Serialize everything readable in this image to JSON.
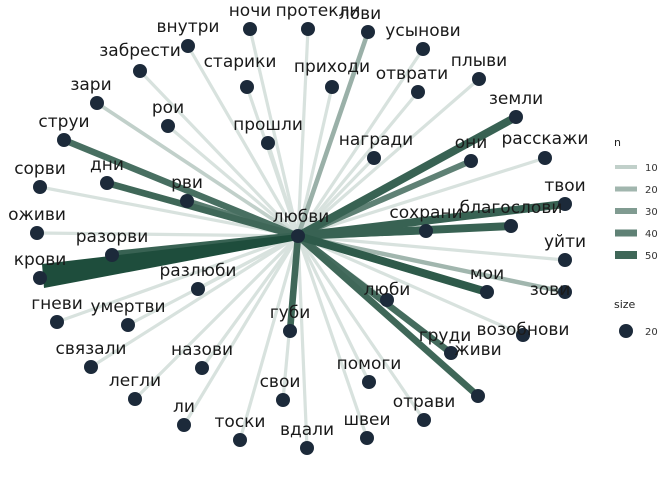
{
  "graph": {
    "center": "любви",
    "colors": {
      "node": "#1c2a3a",
      "edge_max": "#1e4d3c",
      "edge_min": "#d8e2de"
    },
    "nodes": [
      {
        "id": "ночи",
        "label": "ночи"
      },
      {
        "id": "протекли",
        "label": "протекли"
      },
      {
        "id": "лови",
        "label": "лови"
      },
      {
        "id": "внутри",
        "label": "внутри"
      },
      {
        "id": "усынови",
        "label": "усынови"
      },
      {
        "id": "забрести",
        "label": "забрести"
      },
      {
        "id": "старики",
        "label": "старики"
      },
      {
        "id": "приходи",
        "label": "приходи"
      },
      {
        "id": "плыви",
        "label": "плыви"
      },
      {
        "id": "отврати",
        "label": "отврати"
      },
      {
        "id": "зари",
        "label": "зари"
      },
      {
        "id": "земли",
        "label": "земли"
      },
      {
        "id": "рои",
        "label": "рои"
      },
      {
        "id": "струи",
        "label": "струи"
      },
      {
        "id": "прошли",
        "label": "прошли"
      },
      {
        "id": "награди",
        "label": "награди"
      },
      {
        "id": "они",
        "label": "они"
      },
      {
        "id": "расскажи",
        "label": "расскажи"
      },
      {
        "id": "сорви",
        "label": "сорви"
      },
      {
        "id": "дни",
        "label": "дни"
      },
      {
        "id": "рви",
        "label": "рви"
      },
      {
        "id": "твои",
        "label": "твои"
      },
      {
        "id": "благослови",
        "label": "благослови"
      },
      {
        "id": "оживи",
        "label": "оживи"
      },
      {
        "id": "сохрани",
        "label": "сохрани"
      },
      {
        "id": "разорви",
        "label": "разорви"
      },
      {
        "id": "уйти",
        "label": "уйти"
      },
      {
        "id": "крови",
        "label": "крови"
      },
      {
        "id": "разлюби",
        "label": "разлюби"
      },
      {
        "id": "мои",
        "label": "мои"
      },
      {
        "id": "гневи",
        "label": "гневи"
      },
      {
        "id": "люби",
        "label": "люби"
      },
      {
        "id": "зови",
        "label": "зови"
      },
      {
        "id": "умертви",
        "label": "умертви"
      },
      {
        "id": "губи",
        "label": "губи"
      },
      {
        "id": "груди",
        "label": "груди"
      },
      {
        "id": "возобнови",
        "label": "возобнови"
      },
      {
        "id": "связали",
        "label": "связали"
      },
      {
        "id": "назови",
        "label": "назови"
      },
      {
        "id": "легли",
        "label": "легли"
      },
      {
        "id": "свои",
        "label": "свои"
      },
      {
        "id": "помоги",
        "label": "помоги"
      },
      {
        "id": "живи",
        "label": "живи"
      },
      {
        "id": "ли",
        "label": "ли"
      },
      {
        "id": "тоски",
        "label": "тоски"
      },
      {
        "id": "вдали",
        "label": "вдали"
      },
      {
        "id": "швеи",
        "label": "швеи"
      },
      {
        "id": "отрави",
        "label": "отрави"
      }
    ],
    "edges": [
      {
        "target": "ночи",
        "n": 3
      },
      {
        "target": "протекли",
        "n": 3
      },
      {
        "target": "лови",
        "n": 22
      },
      {
        "target": "внутри",
        "n": 3
      },
      {
        "target": "усынови",
        "n": 3
      },
      {
        "target": "забрести",
        "n": 3
      },
      {
        "target": "старики",
        "n": 3
      },
      {
        "target": "приходи",
        "n": 3
      },
      {
        "target": "плыви",
        "n": 3
      },
      {
        "target": "отврати",
        "n": 3
      },
      {
        "target": "зари",
        "n": 10
      },
      {
        "target": "земли",
        "n": 52
      },
      {
        "target": "рои",
        "n": 3
      },
      {
        "target": "струи",
        "n": 47
      },
      {
        "target": "прошли",
        "n": 3
      },
      {
        "target": "награди",
        "n": 3
      },
      {
        "target": "они",
        "n": 40
      },
      {
        "target": "расскажи",
        "n": 3
      },
      {
        "target": "сорви",
        "n": 3
      },
      {
        "target": "дни",
        "n": 50
      },
      {
        "target": "рви",
        "n": 42
      },
      {
        "target": "твои",
        "n": 52
      },
      {
        "target": "благослови",
        "n": 52
      },
      {
        "target": "оживи",
        "n": 3
      },
      {
        "target": "сохрани",
        "n": 50
      },
      {
        "target": "разорви",
        "n": 52
      },
      {
        "target": "уйти",
        "n": 3
      },
      {
        "target": "крови",
        "n": 60
      },
      {
        "target": "разлюби",
        "n": 3
      },
      {
        "target": "мои",
        "n": 55
      },
      {
        "target": "гневи",
        "n": 3
      },
      {
        "target": "люби",
        "n": 3
      },
      {
        "target": "зови",
        "n": 20
      },
      {
        "target": "умертви",
        "n": 3
      },
      {
        "target": "губи",
        "n": 50
      },
      {
        "target": "груди",
        "n": 48
      },
      {
        "target": "возобнови",
        "n": 3
      },
      {
        "target": "связали",
        "n": 3
      },
      {
        "target": "назови",
        "n": 3
      },
      {
        "target": "легли",
        "n": 3
      },
      {
        "target": "свои",
        "n": 3
      },
      {
        "target": "помоги",
        "n": 3
      },
      {
        "target": "живи",
        "n": 50
      },
      {
        "target": "ли",
        "n": 3
      },
      {
        "target": "тоски",
        "n": 3
      },
      {
        "target": "вдали",
        "n": 3
      },
      {
        "target": "швеи",
        "n": 3
      },
      {
        "target": "отрави",
        "n": 3
      }
    ]
  },
  "legend": {
    "n_title": "n",
    "n_values": [
      "10",
      "20",
      "30",
      "40",
      "50"
    ],
    "size_title": "size",
    "size_value": "20"
  }
}
